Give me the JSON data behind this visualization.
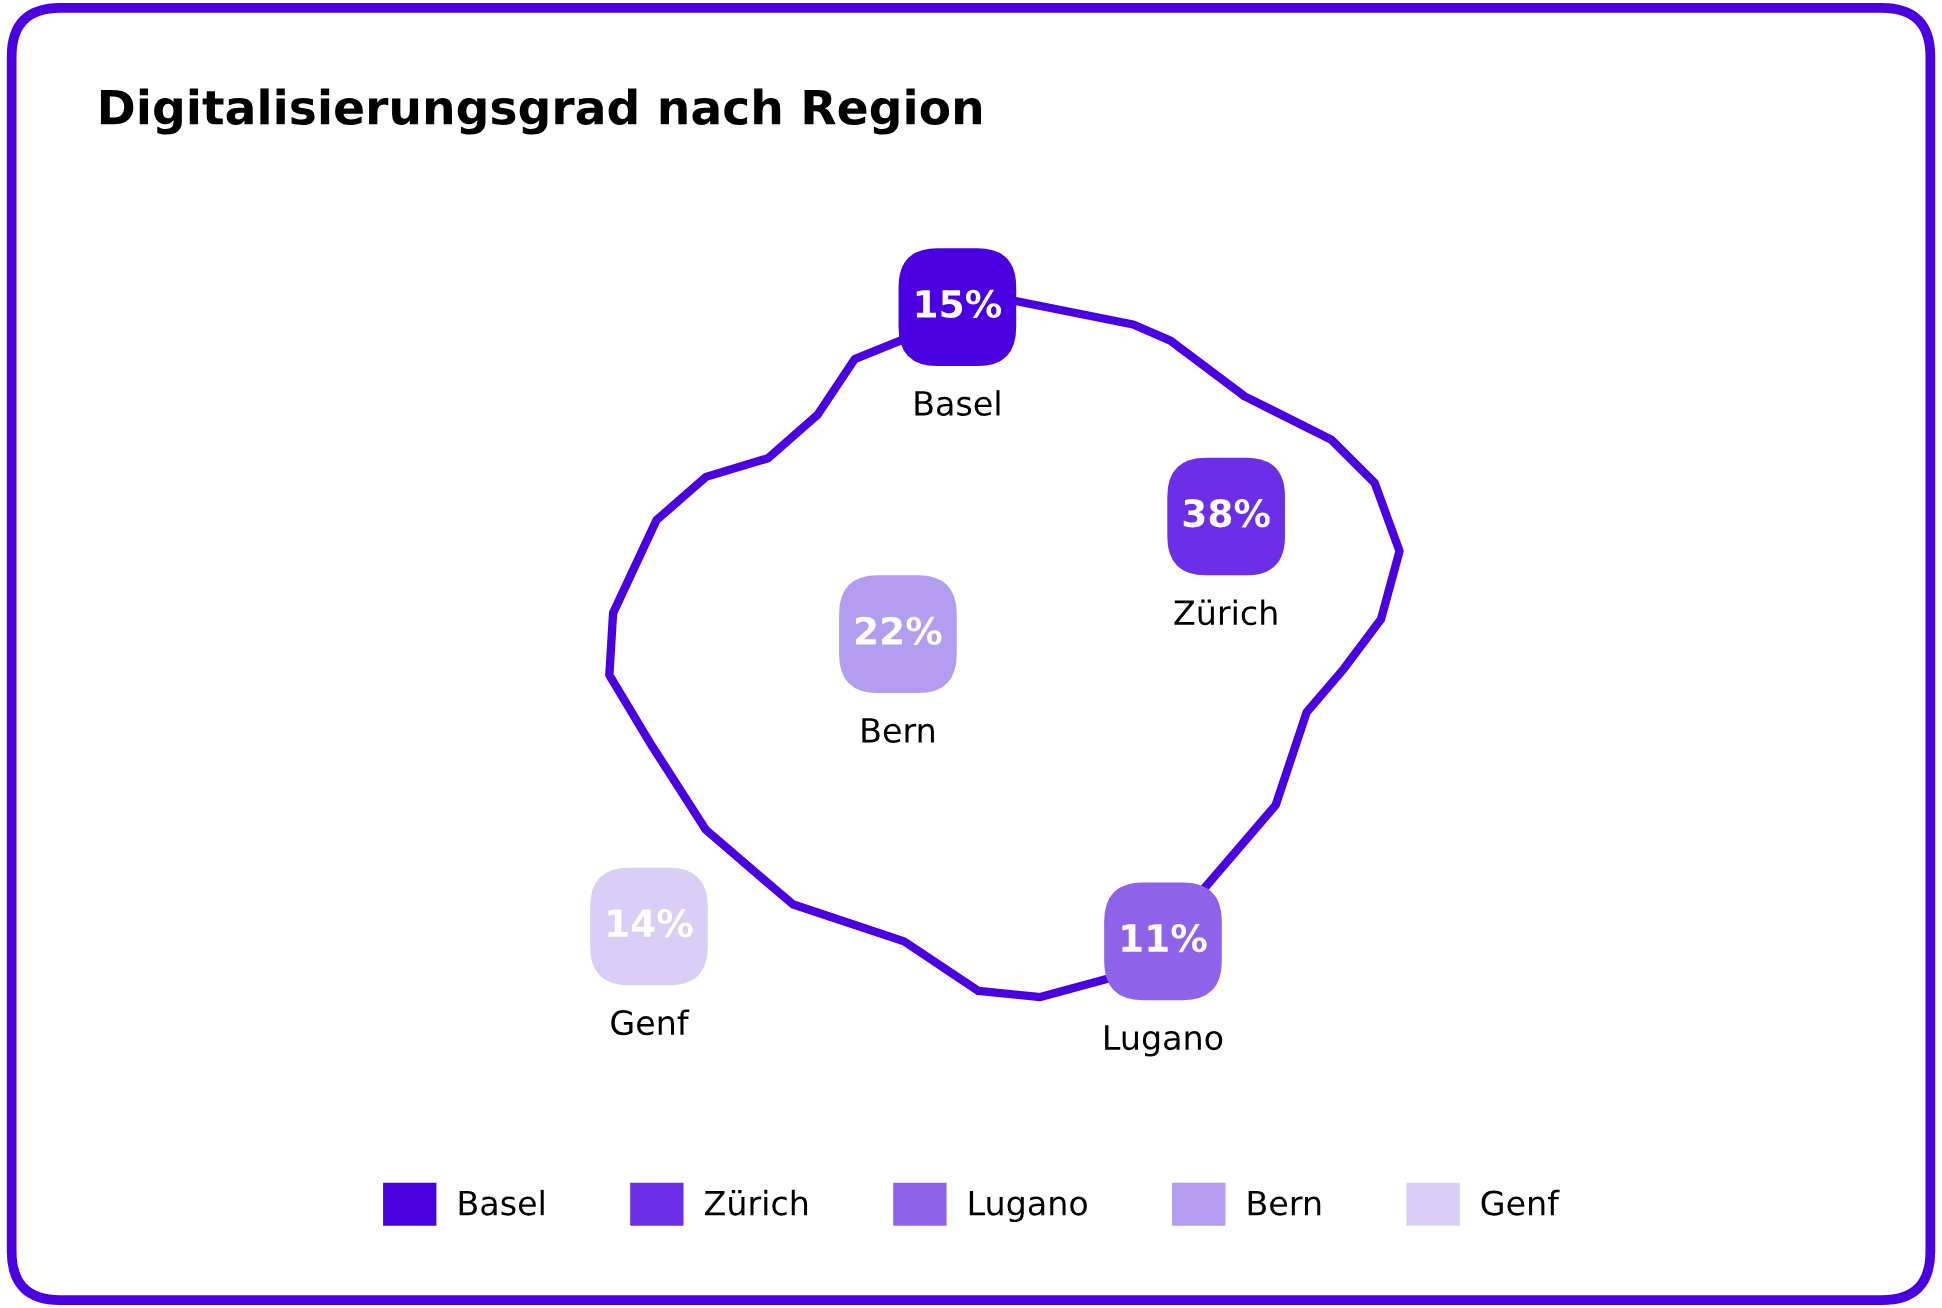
{
  "chart_data": {
    "type": "other",
    "title": "Digitalisierungsgrad nach Region",
    "series": [
      {
        "name": "Basel",
        "color": "#4a00e0",
        "values": [
          15
        ],
        "value_labels": [
          "15%"
        ]
      },
      {
        "name": "Zürich",
        "color": "#6c2ee6",
        "values": [
          38
        ],
        "value_labels": [
          "38%"
        ]
      },
      {
        "name": "Lugano",
        "color": "#8f62ea",
        "values": [
          11
        ],
        "value_labels": [
          "11%"
        ]
      },
      {
        "name": "Bern",
        "color": "#b49cf0",
        "values": [
          22
        ],
        "value_labels": [
          "22%"
        ]
      },
      {
        "name": "Genf",
        "color": "#dacdf6",
        "values": [
          14
        ],
        "value_labels": [
          "14%"
        ]
      }
    ],
    "legend": "bottom"
  }
}
